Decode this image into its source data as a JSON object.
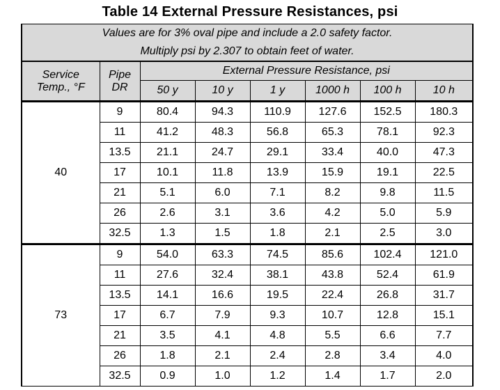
{
  "title": "Table 14 External Pressure Resistances, psi",
  "note_line1": "Values are for 3% oval pipe and include a 2.0 safety factor.",
  "note_line2": "Multiply psi by 2.307 to obtain feet of water.",
  "headers": {
    "service_temp": "Service",
    "service_temp_unit": "Temp., °F",
    "pipe": "Pipe",
    "pipe_dr": "DR",
    "group": "External Pressure Resistance, psi",
    "durations": [
      "50 y",
      "10 y",
      "1 y",
      "1000 h",
      "100 h",
      "10 h"
    ]
  },
  "groups": [
    {
      "temp": "40",
      "rows": [
        {
          "dr": "9",
          "values": [
            "80.4",
            "94.3",
            "110.9",
            "127.6",
            "152.5",
            "180.3"
          ]
        },
        {
          "dr": "11",
          "values": [
            "41.2",
            "48.3",
            "56.8",
            "65.3",
            "78.1",
            "92.3"
          ]
        },
        {
          "dr": "13.5",
          "values": [
            "21.1",
            "24.7",
            "29.1",
            "33.4",
            "40.0",
            "47.3"
          ]
        },
        {
          "dr": "17",
          "values": [
            "10.1",
            "11.8",
            "13.9",
            "15.9",
            "19.1",
            "22.5"
          ]
        },
        {
          "dr": "21",
          "values": [
            "5.1",
            "6.0",
            "7.1",
            "8.2",
            "9.8",
            "11.5"
          ]
        },
        {
          "dr": "26",
          "values": [
            "2.6",
            "3.1",
            "3.6",
            "4.2",
            "5.0",
            "5.9"
          ]
        },
        {
          "dr": "32.5",
          "values": [
            "1.3",
            "1.5",
            "1.8",
            "2.1",
            "2.5",
            "3.0"
          ]
        }
      ]
    },
    {
      "temp": "73",
      "rows": [
        {
          "dr": "9",
          "values": [
            "54.0",
            "63.3",
            "74.5",
            "85.6",
            "102.4",
            "121.0"
          ]
        },
        {
          "dr": "11",
          "values": [
            "27.6",
            "32.4",
            "38.1",
            "43.8",
            "52.4",
            "61.9"
          ]
        },
        {
          "dr": "13.5",
          "values": [
            "14.1",
            "16.6",
            "19.5",
            "22.4",
            "26.8",
            "31.7"
          ]
        },
        {
          "dr": "17",
          "values": [
            "6.7",
            "7.9",
            "9.3",
            "10.7",
            "12.8",
            "15.1"
          ]
        },
        {
          "dr": "21",
          "values": [
            "3.5",
            "4.1",
            "4.8",
            "5.5",
            "6.6",
            "7.7"
          ]
        },
        {
          "dr": "26",
          "values": [
            "1.8",
            "2.1",
            "2.4",
            "2.8",
            "3.4",
            "4.0"
          ]
        },
        {
          "dr": "32.5",
          "values": [
            "0.9",
            "1.0",
            "1.2",
            "1.4",
            "1.7",
            "2.0"
          ]
        }
      ]
    }
  ]
}
